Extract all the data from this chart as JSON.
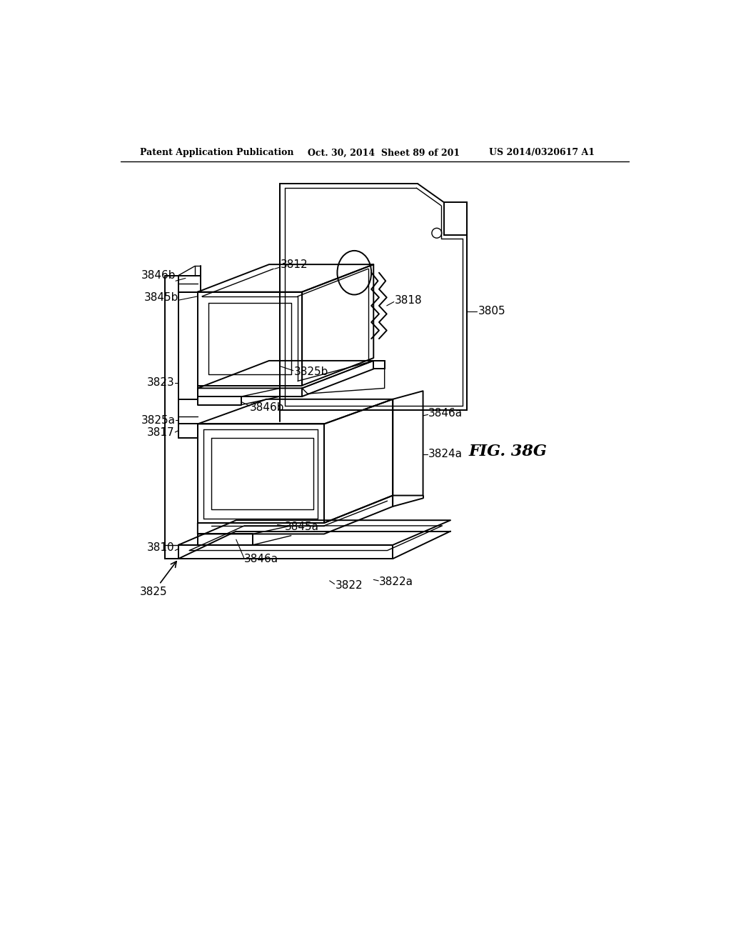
{
  "background_color": "#ffffff",
  "header_left": "Patent Application Publication",
  "header_mid": "Oct. 30, 2014  Sheet 89 of 201",
  "header_right": "US 2014/0320617 A1",
  "fig_label": "FIG. 38G"
}
